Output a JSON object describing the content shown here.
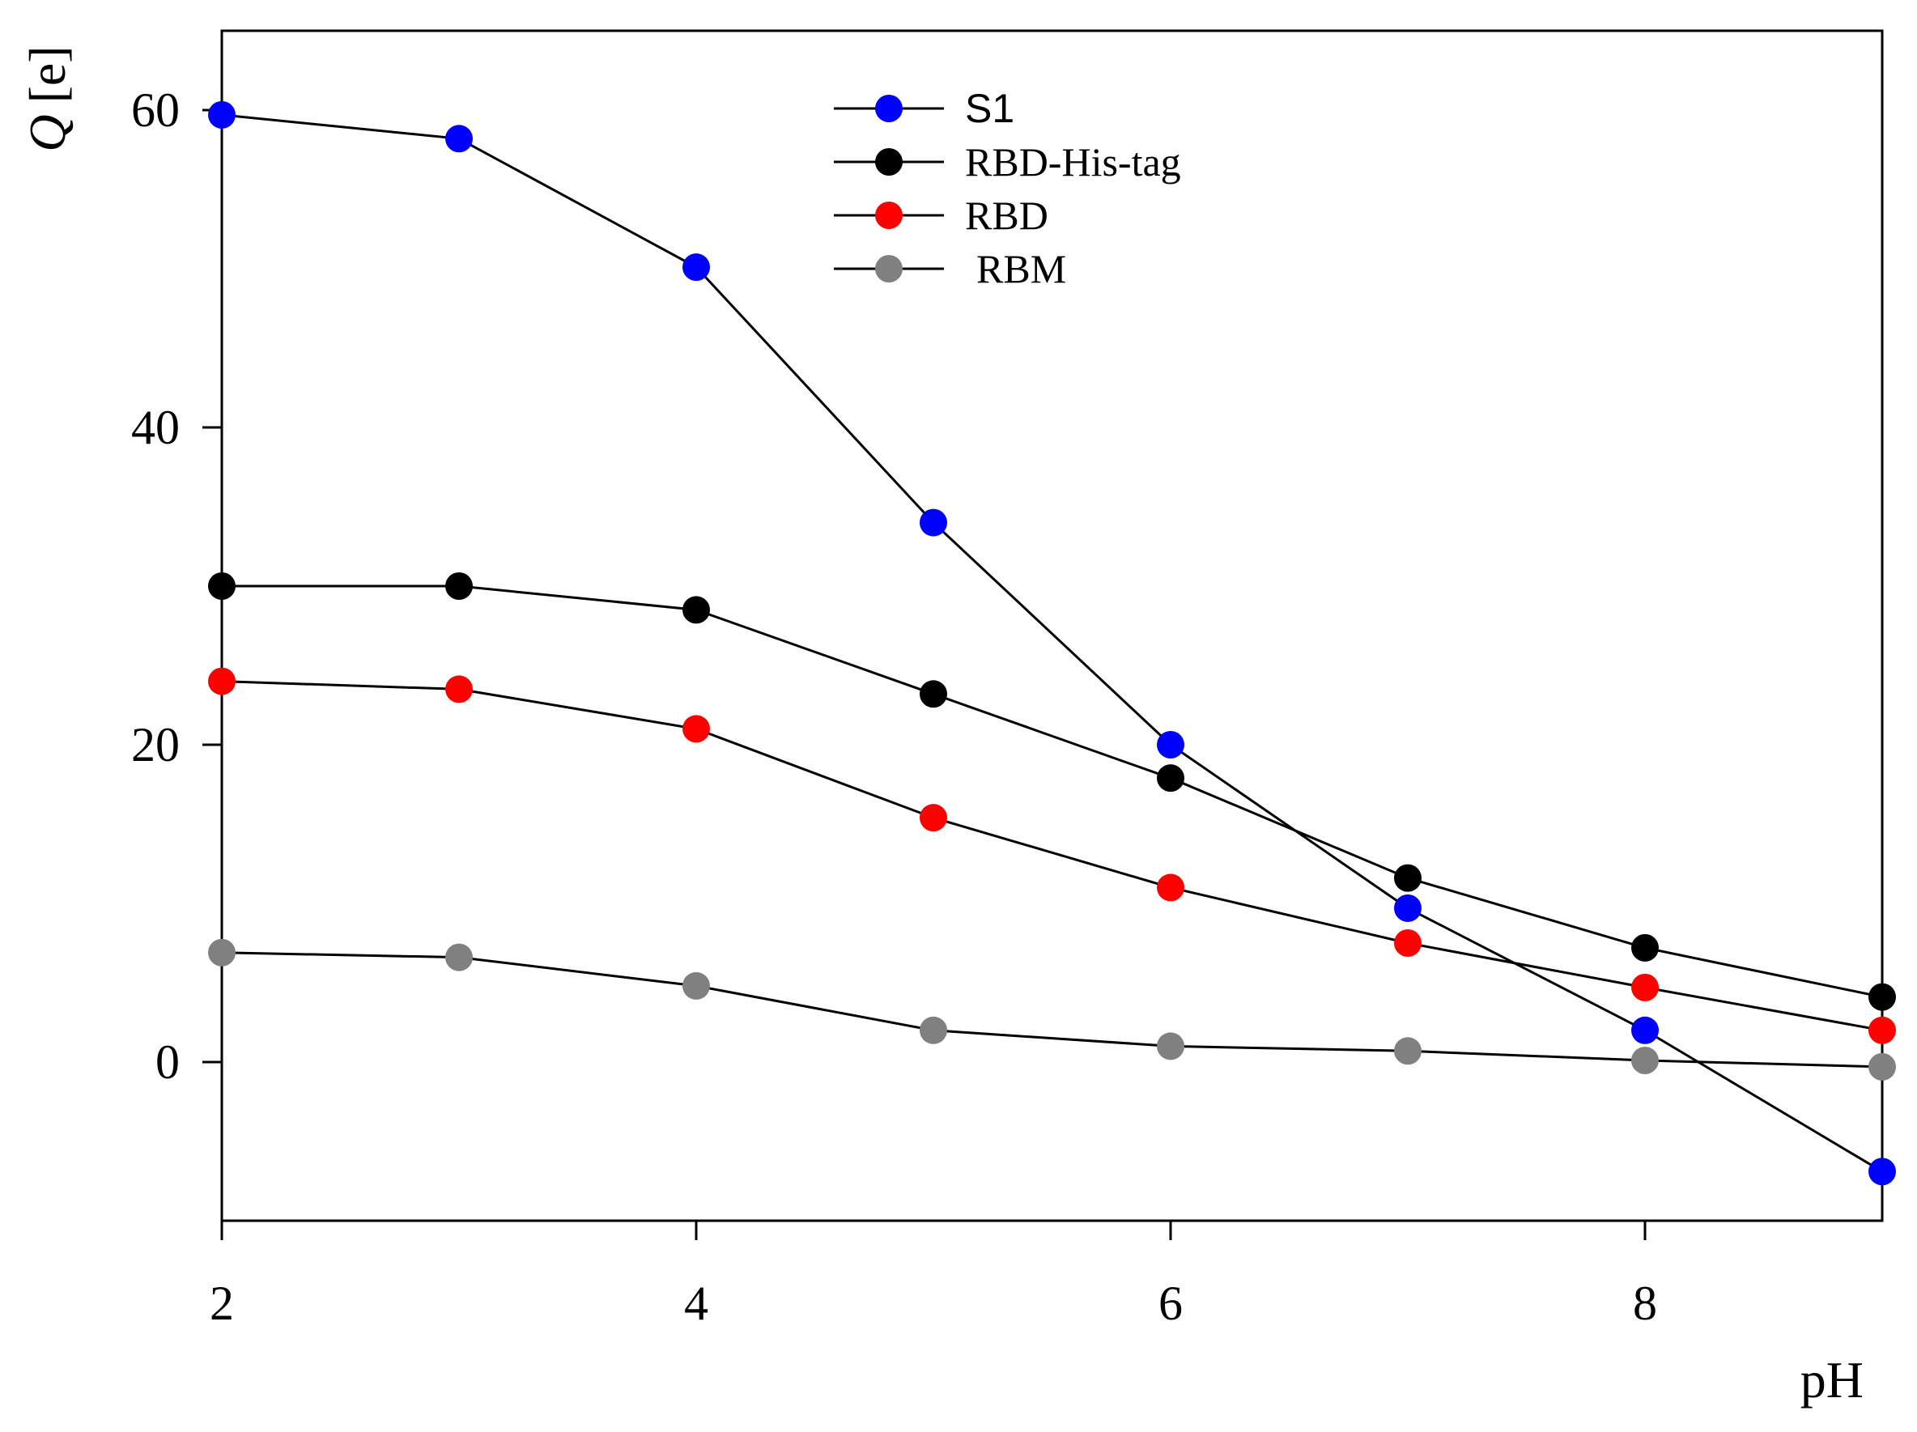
{
  "chart_data": {
    "type": "line",
    "title": "",
    "xlabel": "pH",
    "ylabel_main": "Q",
    "ylabel_unit": "[e]",
    "xlim": [
      2,
      9
    ],
    "ylim": [
      -10,
      65
    ],
    "xticks": [
      2,
      4,
      6,
      8
    ],
    "yticks": [
      0,
      20,
      40,
      60
    ],
    "xtick_labels": [
      "2",
      "4",
      "6",
      "8"
    ],
    "ytick_labels": [
      "0",
      "20",
      "40",
      "60"
    ],
    "grid": false,
    "legend_position": "top-center",
    "x": [
      2,
      3,
      4,
      5,
      6,
      7,
      8,
      9
    ],
    "series": [
      {
        "name": "S1",
        "color": "#0000ff",
        "values": [
          59.7,
          58.2,
          50.1,
          34.0,
          20.0,
          9.7,
          2.0,
          -6.9
        ]
      },
      {
        "name": "RBD-His-tag",
        "color": "#000000",
        "values": [
          30.0,
          30.0,
          28.5,
          23.2,
          17.9,
          11.6,
          7.2,
          4.1
        ]
      },
      {
        "name": "RBD",
        "color": "#ff0000",
        "values": [
          24.0,
          23.5,
          21.0,
          15.4,
          11.0,
          7.5,
          4.7,
          2.0
        ]
      },
      {
        "name": "RBM",
        "color": "#808080",
        "values": [
          6.9,
          6.6,
          4.8,
          2.0,
          1.0,
          0.7,
          0.1,
          -0.3
        ]
      }
    ]
  }
}
